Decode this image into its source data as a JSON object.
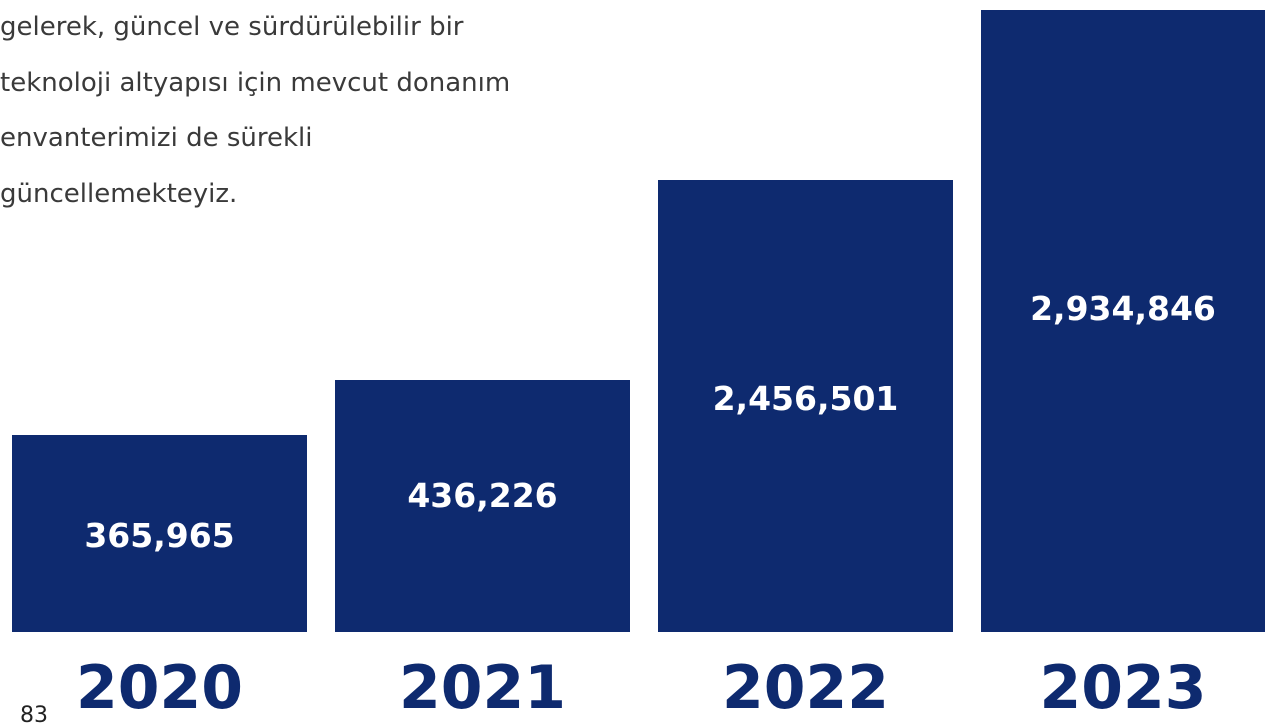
{
  "paragraph": {
    "lines": [
      "gelerek, güncel ve sürdürülebilir bir",
      "teknoloji altyapısı için mevcut donanım",
      "envanterimizi de sürekli",
      "güncellemekteyiz."
    ]
  },
  "page_number": "83",
  "bars": [
    {
      "year": "2020",
      "value": "365,965"
    },
    {
      "year": "2021",
      "value": "436,226"
    },
    {
      "year": "2022",
      "value": "2,456,501"
    },
    {
      "year": "2023",
      "value": "2,934,846"
    }
  ]
}
